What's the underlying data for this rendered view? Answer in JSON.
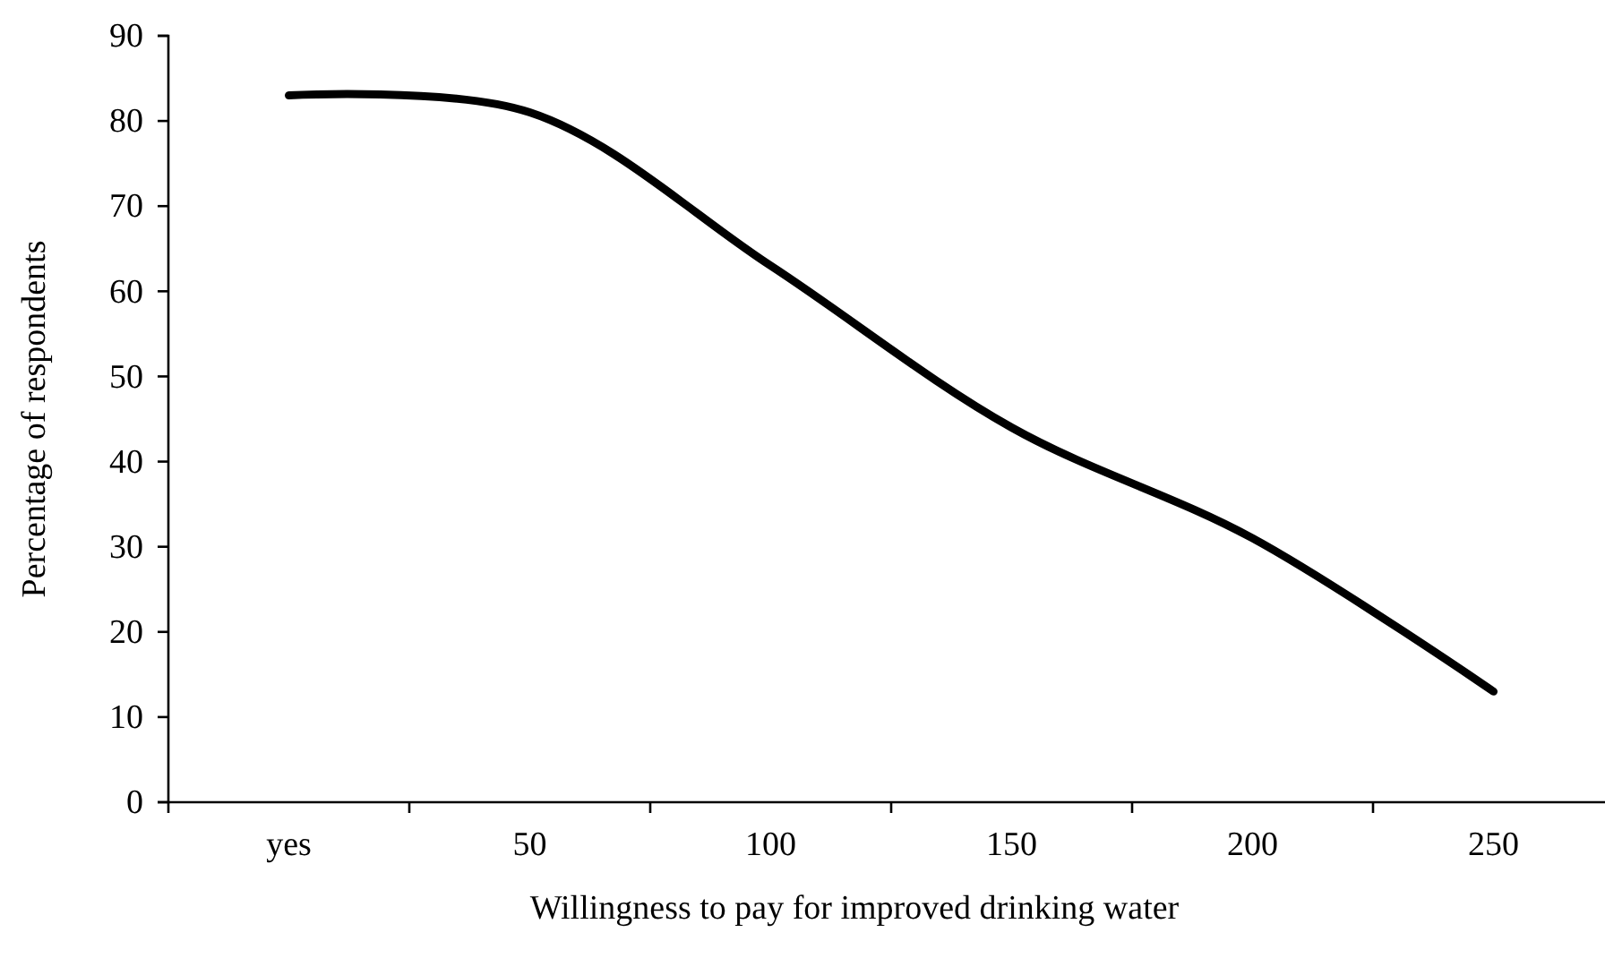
{
  "chart_data": {
    "type": "line",
    "xlabel": "Willingness to pay for improved drinking water",
    "ylabel": "Percentage of respondents",
    "categories": [
      "yes",
      "50",
      "100",
      "150",
      "200",
      "250"
    ],
    "series": [
      {
        "color": "#000000",
        "values": [
          83,
          81,
          63,
          44,
          31,
          13
        ]
      }
    ],
    "ylim": [
      0,
      90
    ],
    "yticks": [
      0,
      10,
      20,
      30,
      40,
      50,
      60,
      70,
      80,
      90
    ],
    "grid": false,
    "marker": "none",
    "line_style": "solid"
  }
}
